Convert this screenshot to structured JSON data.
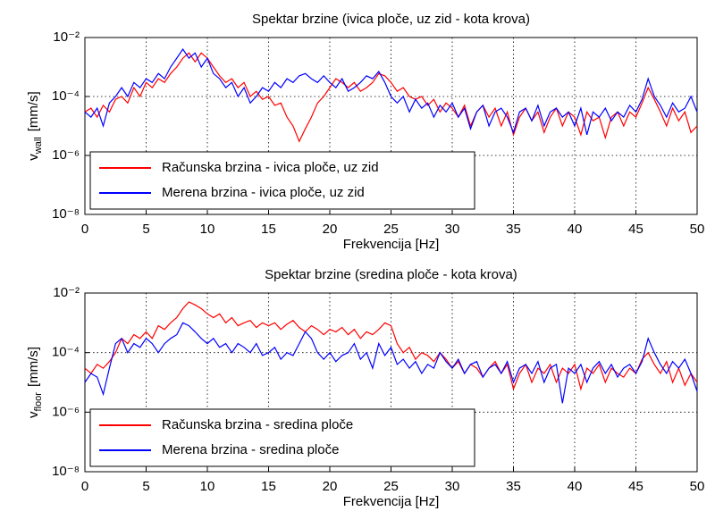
{
  "chart_data": [
    {
      "type": "line",
      "title": "Spektar brzine (ivica ploče, uz zid - kota krova)",
      "xlabel": "Frekvencija [Hz]",
      "ylabel": {
        "main": "v",
        "sub": "wall",
        "unit": "[mm/s]"
      },
      "yscale": "log",
      "grid": true,
      "legend": "lower left",
      "xlim": [
        0,
        50
      ],
      "xticks": [
        0,
        5,
        10,
        15,
        20,
        25,
        30,
        35,
        40,
        45,
        50
      ],
      "ylim": [
        1e-08,
        0.01
      ],
      "yticks": [
        {
          "value": 1e-08,
          "label": "10⁻⁸"
        },
        {
          "value": 1e-06,
          "label": "10⁻⁶"
        },
        {
          "value": 0.0001,
          "label": "10⁻⁴"
        },
        {
          "value": 0.01,
          "label": "10⁻²"
        }
      ],
      "x": [
        0,
        0.5,
        1,
        1.5,
        2,
        2.5,
        3,
        3.5,
        4,
        4.5,
        5,
        5.5,
        6,
        6.5,
        7,
        7.5,
        8,
        8.5,
        9,
        9.5,
        10,
        10.5,
        11,
        11.5,
        12,
        12.5,
        13,
        13.5,
        14,
        14.5,
        15,
        15.5,
        16,
        16.5,
        17,
        17.5,
        18,
        18.5,
        19,
        19.5,
        20,
        20.5,
        21,
        21.5,
        22,
        22.5,
        23,
        23.5,
        24,
        24.5,
        25,
        25.5,
        26,
        26.5,
        27,
        27.5,
        28,
        28.5,
        29,
        29.5,
        30,
        30.5,
        31,
        31.5,
        32,
        32.5,
        33,
        33.5,
        34,
        34.5,
        35,
        35.5,
        36,
        36.5,
        37,
        37.5,
        38,
        38.5,
        39,
        39.5,
        40,
        40.5,
        41,
        41.5,
        42,
        42.5,
        43,
        43.5,
        44,
        44.5,
        45,
        45.5,
        46,
        46.5,
        47,
        47.5,
        48,
        48.5,
        49,
        49.5,
        50
      ],
      "series": [
        {
          "name": "Računska brzina - ivica ploče, uz zid",
          "color": "#ff0000",
          "values": [
            3e-05,
            4e-05,
            2e-05,
            5e-05,
            3e-05,
            8e-05,
            0.0001,
            6e-05,
            0.0002,
            0.0001,
            0.0003,
            0.0002,
            0.0004,
            0.0003,
            0.0006,
            0.001,
            0.002,
            0.003,
            0.0015,
            0.003,
            0.002,
            0.001,
            0.0005,
            0.0003,
            0.0004,
            0.0002,
            0.0003,
            0.0001,
            0.00015,
            8e-05,
            0.0001,
            5e-05,
            6e-05,
            2e-05,
            1e-05,
            3e-06,
            8e-06,
            2e-05,
            6e-05,
            0.0001,
            0.0002,
            0.0004,
            0.0003,
            0.0002,
            0.0003,
            0.00015,
            0.0002,
            0.0003,
            0.0006,
            0.0005,
            0.0003,
            0.00015,
            0.0002,
            0.0001,
            8e-05,
            0.0001,
            5e-05,
            8e-05,
            3e-05,
            6e-05,
            4e-05,
            2e-05,
            5e-05,
            1e-05,
            3e-05,
            5e-05,
            2e-05,
            4e-05,
            1e-05,
            3e-05,
            5e-06,
            2e-05,
            4e-05,
            1.5e-05,
            3e-05,
            6e-06,
            2e-05,
            4e-05,
            1e-05,
            3e-05,
            2e-05,
            5e-06,
            3e-05,
            1.5e-05,
            2e-05,
            4e-06,
            2e-05,
            3e-05,
            1e-05,
            3e-05,
            2e-05,
            6e-05,
            0.0002,
            8e-05,
            3e-05,
            1e-05,
            4e-05,
            1.5e-05,
            3e-05,
            6e-06,
            1e-05
          ]
        },
        {
          "name": "Merena brzina - ivica ploče, uz zid",
          "color": "#0000ff",
          "values": [
            3e-05,
            2e-05,
            4e-05,
            1e-05,
            6e-05,
            0.0001,
            0.0002,
            0.0001,
            0.0003,
            0.0002,
            0.0004,
            0.0003,
            0.0006,
            0.0004,
            0.001,
            0.002,
            0.004,
            0.002,
            0.003,
            0.001,
            0.002,
            0.0006,
            0.0004,
            0.0002,
            0.0003,
            0.0001,
            0.0002,
            6e-05,
            0.0001,
            0.0002,
            0.00015,
            0.0003,
            0.0002,
            0.0004,
            0.0003,
            0.0005,
            0.0006,
            0.0004,
            0.0003,
            0.0005,
            0.0003,
            0.0002,
            0.0004,
            0.00015,
            0.0002,
            0.0003,
            0.0005,
            0.0004,
            0.0007,
            0.0003,
            0.0001,
            6e-05,
            0.0001,
            3e-05,
            8e-05,
            4e-05,
            6e-05,
            2e-05,
            5e-05,
            3e-05,
            6e-05,
            2e-05,
            4e-05,
            8e-06,
            3e-05,
            5e-05,
            1e-05,
            3e-05,
            4e-05,
            2e-05,
            6e-06,
            3e-05,
            4e-05,
            1.5e-05,
            5e-05,
            1e-05,
            3e-05,
            4e-05,
            2e-05,
            3e-05,
            1e-05,
            4e-05,
            5e-06,
            3e-05,
            2e-05,
            4e-05,
            1.5e-05,
            3e-05,
            2e-05,
            5e-05,
            3e-05,
            8e-05,
            0.0004,
            0.0001,
            5e-05,
            2e-05,
            6e-05,
            3e-05,
            4e-05,
            0.0001,
            3e-05
          ]
        }
      ]
    },
    {
      "type": "line",
      "title": "Spektar brzine (sredina ploče - kota krova)",
      "xlabel": "Frekvencija [Hz]",
      "ylabel": {
        "main": "v",
        "sub": "floor",
        "unit": "[mm/s]"
      },
      "yscale": "log",
      "grid": true,
      "legend": "lower left",
      "xlim": [
        0,
        50
      ],
      "xticks": [
        0,
        5,
        10,
        15,
        20,
        25,
        30,
        35,
        40,
        45,
        50
      ],
      "ylim": [
        1e-08,
        0.01
      ],
      "yticks": [
        {
          "value": 1e-08,
          "label": "10⁻⁸"
        },
        {
          "value": 1e-06,
          "label": "10⁻⁶"
        },
        {
          "value": 0.0001,
          "label": "10⁻⁴"
        },
        {
          "value": 0.01,
          "label": "10⁻²"
        }
      ],
      "x": [
        0,
        0.5,
        1,
        1.5,
        2,
        2.5,
        3,
        3.5,
        4,
        4.5,
        5,
        5.5,
        6,
        6.5,
        7,
        7.5,
        8,
        8.5,
        9,
        9.5,
        10,
        10.5,
        11,
        11.5,
        12,
        12.5,
        13,
        13.5,
        14,
        14.5,
        15,
        15.5,
        16,
        16.5,
        17,
        17.5,
        18,
        18.5,
        19,
        19.5,
        20,
        20.5,
        21,
        21.5,
        22,
        22.5,
        23,
        23.5,
        24,
        24.5,
        25,
        25.5,
        26,
        26.5,
        27,
        27.5,
        28,
        28.5,
        29,
        29.5,
        30,
        30.5,
        31,
        31.5,
        32,
        32.5,
        33,
        33.5,
        34,
        34.5,
        35,
        35.5,
        36,
        36.5,
        37,
        37.5,
        38,
        38.5,
        39,
        39.5,
        40,
        40.5,
        41,
        41.5,
        42,
        42.5,
        43,
        43.5,
        44,
        44.5,
        45,
        45.5,
        46,
        46.5,
        47,
        47.5,
        48,
        48.5,
        49,
        49.5,
        50
      ],
      "series": [
        {
          "name": "Računska brzina - sredina ploče",
          "color": "#ff0000",
          "values": [
            3e-05,
            2e-05,
            4e-05,
            3e-05,
            5e-05,
            0.0001,
            0.0003,
            0.0002,
            0.0004,
            0.0003,
            0.0005,
            0.0003,
            0.0008,
            0.0006,
            0.001,
            0.0015,
            0.003,
            0.005,
            0.004,
            0.003,
            0.002,
            0.0015,
            0.002,
            0.001,
            0.0015,
            0.0008,
            0.001,
            0.0012,
            0.0007,
            0.001,
            0.0008,
            0.001,
            0.0006,
            0.0009,
            0.0012,
            0.0007,
            0.0005,
            0.0008,
            0.0006,
            0.0004,
            0.0006,
            0.0005,
            0.0007,
            0.0004,
            0.0006,
            0.0003,
            0.0005,
            0.0004,
            0.0006,
            0.001,
            0.0008,
            0.0002,
            0.0001,
            0.00015,
            6e-05,
            0.0001,
            8e-05,
            5e-05,
            0.0001,
            6e-05,
            3e-05,
            5e-05,
            2e-05,
            4e-05,
            3e-05,
            1.5e-05,
            3e-05,
            5e-05,
            2e-05,
            4e-05,
            6e-06,
            2e-05,
            4e-05,
            1e-05,
            3e-05,
            2e-05,
            4e-05,
            1e-05,
            3e-05,
            2e-05,
            4e-05,
            6e-06,
            3e-05,
            2e-05,
            4e-05,
            1e-05,
            3e-05,
            2e-05,
            1.5e-05,
            3e-05,
            2e-05,
            6e-05,
            0.0001,
            4e-05,
            2e-05,
            5e-05,
            1e-05,
            3e-05,
            8e-06,
            2e-05,
            1e-05
          ]
        },
        {
          "name": "Merena brzina - sredina ploče",
          "color": "#0000ff",
          "values": [
            1e-05,
            2e-05,
            1.5e-05,
            4e-06,
            3e-05,
            0.0002,
            0.0003,
            0.0001,
            0.0002,
            0.00015,
            0.0003,
            0.0002,
            0.0001,
            0.0002,
            0.0003,
            0.0004,
            0.001,
            0.0008,
            0.0005,
            0.0003,
            0.0002,
            0.0003,
            0.00015,
            0.0002,
            0.0001,
            0.0002,
            0.00015,
            0.0001,
            0.0002,
            8e-05,
            0.0001,
            0.00015,
            6e-05,
            0.0001,
            8e-05,
            0.0002,
            0.0005,
            0.0003,
            0.0001,
            6e-05,
            0.0001,
            5e-05,
            8e-05,
            0.0001,
            0.0002,
            6e-05,
            0.0001,
            3e-05,
            0.0002,
            8e-05,
            0.00015,
            4e-05,
            6e-05,
            3e-05,
            5e-05,
            2e-05,
            4e-05,
            3e-05,
            0.0001,
            5e-05,
            3e-05,
            6e-05,
            2e-05,
            4e-05,
            5e-05,
            1.5e-05,
            3e-05,
            4e-05,
            2e-05,
            5e-05,
            1e-05,
            3e-05,
            4e-05,
            2e-05,
            5e-05,
            1e-05,
            3e-05,
            4e-05,
            2e-06,
            3e-05,
            2e-05,
            4e-05,
            1e-05,
            3e-05,
            5e-05,
            2e-05,
            4e-05,
            1.5e-05,
            3e-05,
            4e-05,
            2e-05,
            5e-05,
            0.0003,
            0.0001,
            4e-05,
            2e-05,
            5e-05,
            3e-05,
            6e-05,
            2e-05,
            5e-06
          ]
        }
      ]
    }
  ]
}
